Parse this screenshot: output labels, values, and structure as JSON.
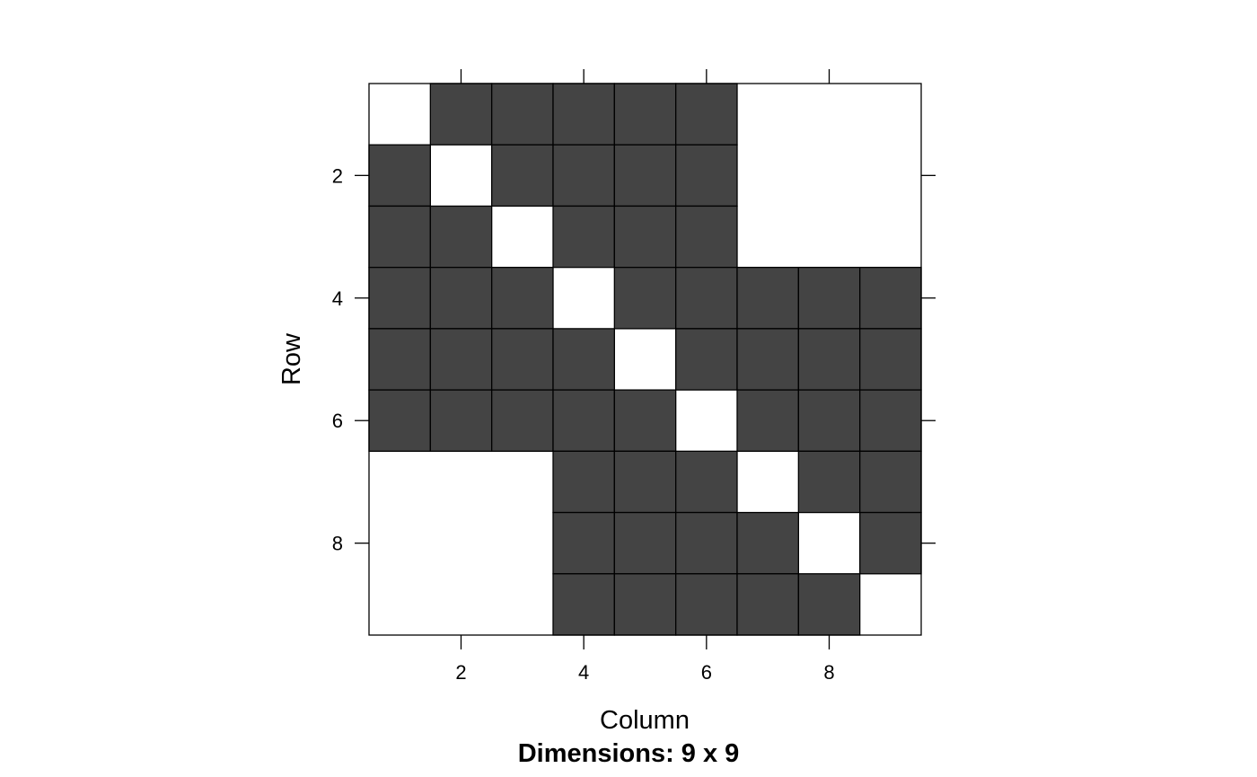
{
  "chart_data": {
    "type": "heatmap",
    "title": "",
    "xlabel": "Column",
    "ylabel": "Row",
    "subtitle": "Dimensions: 9 x 9",
    "rows": 9,
    "cols": 9,
    "x_ticks": [
      2,
      4,
      6,
      8
    ],
    "y_ticks": [
      2,
      4,
      6,
      8
    ],
    "x_tick_labels": [
      "2",
      "4",
      "6",
      "8"
    ],
    "y_tick_labels": [
      "2",
      "4",
      "6",
      "8"
    ],
    "xlim": [
      0.5,
      9.5
    ],
    "ylim": [
      9.5,
      0.5
    ],
    "nonzero_color": "#444444",
    "zero_color": "#ffffff",
    "matrix": [
      [
        0,
        1,
        1,
        1,
        1,
        1,
        0,
        0,
        0
      ],
      [
        1,
        0,
        1,
        1,
        1,
        1,
        0,
        0,
        0
      ],
      [
        1,
        1,
        0,
        1,
        1,
        1,
        0,
        0,
        0
      ],
      [
        1,
        1,
        1,
        0,
        1,
        1,
        1,
        1,
        1
      ],
      [
        1,
        1,
        1,
        1,
        0,
        1,
        1,
        1,
        1
      ],
      [
        1,
        1,
        1,
        1,
        1,
        0,
        1,
        1,
        1
      ],
      [
        0,
        0,
        0,
        1,
        1,
        1,
        0,
        1,
        1
      ],
      [
        0,
        0,
        0,
        1,
        1,
        1,
        1,
        0,
        1
      ],
      [
        0,
        0,
        0,
        1,
        1,
        1,
        1,
        1,
        0
      ]
    ]
  }
}
